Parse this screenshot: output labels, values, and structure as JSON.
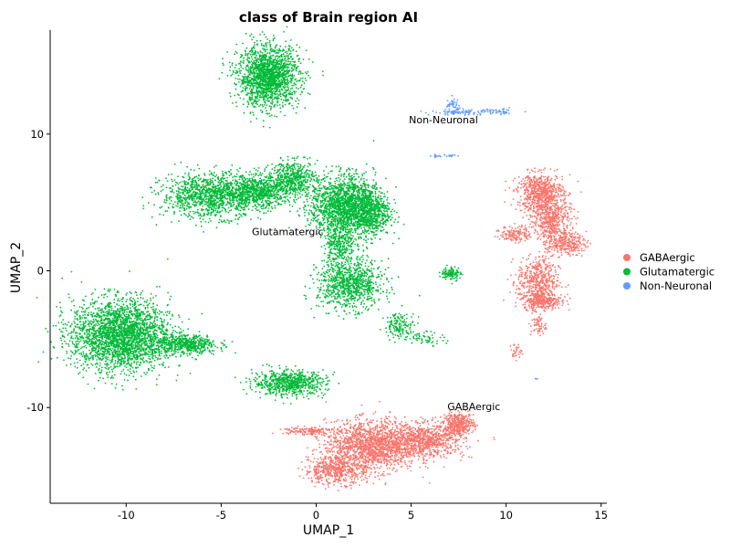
{
  "chart_data": {
    "type": "scatter",
    "title": "class of Brain region AI",
    "xlabel": "UMAP_1",
    "ylabel": "UMAP_2",
    "xlim": [
      -14,
      15.3
    ],
    "ylim": [
      -17,
      17.6
    ],
    "xticks": [
      -10,
      -5,
      0,
      5,
      10,
      15
    ],
    "yticks": [
      -10,
      0,
      10
    ],
    "grid": false,
    "legend_position": "right",
    "colors": {
      "GABAergic": "#F8766D",
      "Glutamatergic": "#00BA38",
      "Non-Neuronal": "#619CFF"
    },
    "legend": [
      "GABAergic",
      "Glutamatergic",
      "Non-Neuronal"
    ],
    "cluster_labels": [
      {
        "text": "Non-Neuronal",
        "x": 6.7,
        "y": 11.0
      },
      {
        "text": "Glutamatergic",
        "x": -1.5,
        "y": 2.8
      },
      {
        "text": "GABAergic",
        "x": 8.3,
        "y": -10.0
      }
    ],
    "clusters": [
      {
        "class": "Glutamatergic",
        "cx": -2.5,
        "cy": 14.2,
        "sx": 0.8,
        "sy": 1.1,
        "n": 1700
      },
      {
        "class": "Glutamatergic",
        "cx": -10.3,
        "cy": -4.7,
        "sx": 1.3,
        "sy": 1.3,
        "n": 2600
      },
      {
        "class": "Glutamatergic",
        "cx": -6.8,
        "cy": -5.4,
        "sx": 0.8,
        "sy": 0.35,
        "n": 500
      },
      {
        "class": "Glutamatergic",
        "cx": -5.5,
        "cy": 5.5,
        "sx": 1.3,
        "sy": 0.8,
        "n": 1200
      },
      {
        "class": "Glutamatergic",
        "cx": -3.0,
        "cy": 5.8,
        "sx": 0.9,
        "sy": 0.6,
        "n": 700
      },
      {
        "class": "Glutamatergic",
        "cx": -1.2,
        "cy": 6.8,
        "sx": 0.6,
        "sy": 0.6,
        "n": 500
      },
      {
        "class": "Glutamatergic",
        "cx": 1.4,
        "cy": 4.8,
        "sx": 0.85,
        "sy": 1.1,
        "n": 1500
      },
      {
        "class": "Glutamatergic",
        "cx": 2.8,
        "cy": 4.3,
        "sx": 0.55,
        "sy": 0.9,
        "n": 700
      },
      {
        "class": "Glutamatergic",
        "cx": 1.2,
        "cy": 2.0,
        "sx": 0.4,
        "sy": 0.8,
        "n": 300
      },
      {
        "class": "Glutamatergic",
        "cx": 1.8,
        "cy": -1.0,
        "sx": 0.85,
        "sy": 0.9,
        "n": 900
      },
      {
        "class": "Glutamatergic",
        "cx": 4.4,
        "cy": -4.0,
        "sx": 0.4,
        "sy": 0.45,
        "n": 150
      },
      {
        "class": "Glutamatergic",
        "cx": 5.8,
        "cy": -4.9,
        "sx": 0.5,
        "sy": 0.25,
        "n": 60
      },
      {
        "class": "Glutamatergic",
        "cx": 7.1,
        "cy": -0.2,
        "sx": 0.25,
        "sy": 0.25,
        "n": 110
      },
      {
        "class": "Glutamatergic",
        "cx": -1.4,
        "cy": -8.2,
        "sx": 0.95,
        "sy": 0.45,
        "n": 700
      },
      {
        "class": "Non-Neuronal",
        "cx": 7.8,
        "cy": 11.6,
        "sx": 0.9,
        "sy": 0.1,
        "n": 100
      },
      {
        "class": "Non-Neuronal",
        "cx": 7.2,
        "cy": 12.1,
        "sx": 0.2,
        "sy": 0.25,
        "n": 40
      },
      {
        "class": "Non-Neuronal",
        "cx": 9.8,
        "cy": 11.6,
        "sx": 0.3,
        "sy": 0.1,
        "n": 30
      },
      {
        "class": "Non-Neuronal",
        "cx": 6.7,
        "cy": 8.4,
        "sx": 0.5,
        "sy": 0.06,
        "n": 25
      },
      {
        "class": "Non-Neuronal",
        "cx": 11.6,
        "cy": -7.9,
        "sx": 0.05,
        "sy": 0.05,
        "n": 3
      },
      {
        "class": "GABAergic",
        "cx": 11.8,
        "cy": 5.7,
        "sx": 0.6,
        "sy": 0.7,
        "n": 700
      },
      {
        "class": "GABAergic",
        "cx": 12.4,
        "cy": 3.6,
        "sx": 0.5,
        "sy": 0.8,
        "n": 500
      },
      {
        "class": "GABAergic",
        "cx": 13.2,
        "cy": 2.0,
        "sx": 0.5,
        "sy": 0.4,
        "n": 250
      },
      {
        "class": "GABAergic",
        "cx": 10.5,
        "cy": 2.7,
        "sx": 0.4,
        "sy": 0.3,
        "n": 150
      },
      {
        "class": "GABAergic",
        "cx": 11.7,
        "cy": -0.8,
        "sx": 0.55,
        "sy": 0.9,
        "n": 500
      },
      {
        "class": "GABAergic",
        "cx": 11.9,
        "cy": -2.2,
        "sx": 0.5,
        "sy": 0.3,
        "n": 300
      },
      {
        "class": "GABAergic",
        "cx": 11.7,
        "cy": -4.0,
        "sx": 0.2,
        "sy": 0.4,
        "n": 60
      },
      {
        "class": "GABAergic",
        "cx": 10.5,
        "cy": -5.9,
        "sx": 0.15,
        "sy": 0.3,
        "n": 30
      },
      {
        "class": "GABAergic",
        "cx": 2.9,
        "cy": -12.8,
        "sx": 1.2,
        "sy": 0.9,
        "n": 1600
      },
      {
        "class": "GABAergic",
        "cx": 1.0,
        "cy": -14.6,
        "sx": 0.8,
        "sy": 0.5,
        "n": 500
      },
      {
        "class": "GABAergic",
        "cx": 5.8,
        "cy": -12.4,
        "sx": 1.0,
        "sy": 0.6,
        "n": 800
      },
      {
        "class": "GABAergic",
        "cx": 7.5,
        "cy": -11.2,
        "sx": 0.4,
        "sy": 0.4,
        "n": 400
      },
      {
        "class": "GABAergic",
        "cx": -0.5,
        "cy": -11.7,
        "sx": 0.7,
        "sy": 0.15,
        "n": 150
      }
    ]
  }
}
